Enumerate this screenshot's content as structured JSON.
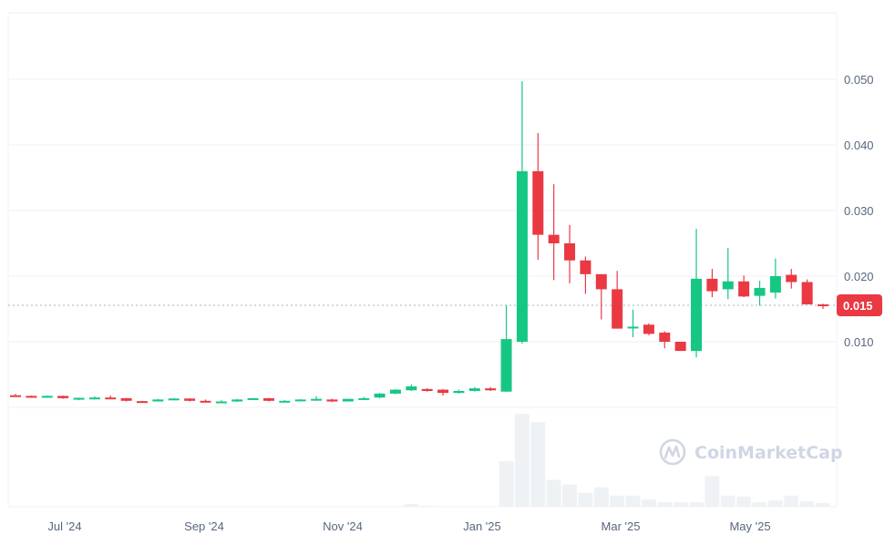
{
  "chart_data": {
    "type": "candlestick",
    "title": "",
    "xlabel": "",
    "ylabel": "",
    "interval": "weekly",
    "ylim": [
      0.0,
      0.06
    ],
    "y_ticks": [
      "0.050",
      "0.040",
      "0.030",
      "0.020",
      "0.010"
    ],
    "y_tick_values": [
      0.05,
      0.04,
      0.03,
      0.02,
      0.01
    ],
    "x_ticks": [
      "Jul '24",
      "Sep '24",
      "Nov '24",
      "Jan '25",
      "Mar '25",
      "May '25"
    ],
    "current_price": 0.015,
    "current_price_label": "0.015",
    "colors": {
      "up": "#16c784",
      "down": "#ea3943",
      "volume": "#eff2f5",
      "grid": "#eff2f5",
      "axis_text": "#58667e",
      "badge": "#ea3943"
    },
    "candles": [
      {
        "o": 0.00185,
        "h": 0.00205,
        "l": 0.0017,
        "c": 0.00175
      },
      {
        "o": 0.00175,
        "h": 0.0018,
        "l": 0.0016,
        "c": 0.0016
      },
      {
        "o": 0.0016,
        "h": 0.0018,
        "l": 0.0015,
        "c": 0.00175
      },
      {
        "o": 0.00175,
        "h": 0.0018,
        "l": 0.0013,
        "c": 0.0014
      },
      {
        "o": 0.0013,
        "h": 0.0015,
        "l": 0.0011,
        "c": 0.00145
      },
      {
        "o": 0.0014,
        "h": 0.0017,
        "l": 0.0012,
        "c": 0.0015
      },
      {
        "o": 0.0015,
        "h": 0.0018,
        "l": 0.0013,
        "c": 0.0014
      },
      {
        "o": 0.0014,
        "h": 0.00145,
        "l": 0.0009,
        "c": 0.001
      },
      {
        "o": 0.00095,
        "h": 0.001,
        "l": 0.0008,
        "c": 0.0009
      },
      {
        "o": 0.0009,
        "h": 0.0013,
        "l": 0.0009,
        "c": 0.0012
      },
      {
        "o": 0.0012,
        "h": 0.0014,
        "l": 0.0011,
        "c": 0.00135
      },
      {
        "o": 0.00135,
        "h": 0.0014,
        "l": 0.0009,
        "c": 0.001
      },
      {
        "o": 0.001,
        "h": 0.0012,
        "l": 0.0008,
        "c": 0.0009
      },
      {
        "o": 0.0008,
        "h": 0.0011,
        "l": 0.0007,
        "c": 0.0009
      },
      {
        "o": 0.0009,
        "h": 0.0013,
        "l": 0.0008,
        "c": 0.0012
      },
      {
        "o": 0.0012,
        "h": 0.0014,
        "l": 0.0011,
        "c": 0.0014
      },
      {
        "o": 0.0014,
        "h": 0.00145,
        "l": 0.0009,
        "c": 0.001
      },
      {
        "o": 0.0009,
        "h": 0.0011,
        "l": 0.0008,
        "c": 0.001
      },
      {
        "o": 0.001,
        "h": 0.00125,
        "l": 0.0009,
        "c": 0.0012
      },
      {
        "o": 0.0011,
        "h": 0.0017,
        "l": 0.001,
        "c": 0.0013
      },
      {
        "o": 0.0012,
        "h": 0.0013,
        "l": 0.0008,
        "c": 0.0009
      },
      {
        "o": 0.0009,
        "h": 0.0013,
        "l": 0.0009,
        "c": 0.0013
      },
      {
        "o": 0.0013,
        "h": 0.0016,
        "l": 0.0012,
        "c": 0.0014
      },
      {
        "o": 0.0015,
        "h": 0.0022,
        "l": 0.0014,
        "c": 0.0021
      },
      {
        "o": 0.0021,
        "h": 0.0028,
        "l": 0.002,
        "c": 0.0027
      },
      {
        "o": 0.0026,
        "h": 0.0035,
        "l": 0.0025,
        "c": 0.0032
      },
      {
        "o": 0.0028,
        "h": 0.0029,
        "l": 0.0024,
        "c": 0.0025
      },
      {
        "o": 0.0027,
        "h": 0.0028,
        "l": 0.0018,
        "c": 0.0022
      },
      {
        "o": 0.0022,
        "h": 0.0027,
        "l": 0.0021,
        "c": 0.0025
      },
      {
        "o": 0.0025,
        "h": 0.0031,
        "l": 0.0024,
        "c": 0.0029
      },
      {
        "o": 0.0029,
        "h": 0.0031,
        "l": 0.0025,
        "c": 0.0026
      },
      {
        "o": 0.0024,
        "h": 0.0156,
        "l": 0.0024,
        "c": 0.0104
      },
      {
        "o": 0.01,
        "h": 0.0497,
        "l": 0.0097,
        "c": 0.036
      },
      {
        "o": 0.036,
        "h": 0.0418,
        "l": 0.0225,
        "c": 0.0263
      },
      {
        "o": 0.0263,
        "h": 0.034,
        "l": 0.0194,
        "c": 0.025
      },
      {
        "o": 0.025,
        "h": 0.0278,
        "l": 0.0189,
        "c": 0.0224
      },
      {
        "o": 0.0224,
        "h": 0.023,
        "l": 0.0173,
        "c": 0.0203
      },
      {
        "o": 0.0203,
        "h": 0.0203,
        "l": 0.0134,
        "c": 0.018
      },
      {
        "o": 0.018,
        "h": 0.0208,
        "l": 0.012,
        "c": 0.012
      },
      {
        "o": 0.0122,
        "h": 0.0149,
        "l": 0.0107,
        "c": 0.0123
      },
      {
        "o": 0.0126,
        "h": 0.0128,
        "l": 0.011,
        "c": 0.0112
      },
      {
        "o": 0.0114,
        "h": 0.0116,
        "l": 0.009,
        "c": 0.01
      },
      {
        "o": 0.01,
        "h": 0.01,
        "l": 0.0086,
        "c": 0.0086
      },
      {
        "o": 0.0086,
        "h": 0.0272,
        "l": 0.0076,
        "c": 0.0196
      },
      {
        "o": 0.0196,
        "h": 0.0211,
        "l": 0.0168,
        "c": 0.0177
      },
      {
        "o": 0.018,
        "h": 0.0243,
        "l": 0.0165,
        "c": 0.0192
      },
      {
        "o": 0.0192,
        "h": 0.0201,
        "l": 0.0168,
        "c": 0.0169
      },
      {
        "o": 0.017,
        "h": 0.0193,
        "l": 0.0155,
        "c": 0.0182
      },
      {
        "o": 0.0175,
        "h": 0.0227,
        "l": 0.0166,
        "c": 0.02
      },
      {
        "o": 0.0202,
        "h": 0.0211,
        "l": 0.0181,
        "c": 0.0191
      },
      {
        "o": 0.0191,
        "h": 0.0195,
        "l": 0.0157,
        "c": 0.0157
      },
      {
        "o": 0.0157,
        "h": 0.0158,
        "l": 0.015,
        "c": 0.0155
      }
    ],
    "volume_relative": [
      0,
      0,
      0,
      0,
      0,
      0,
      0,
      0,
      0,
      0,
      0,
      0,
      0,
      0,
      0,
      0,
      0,
      0,
      0,
      0,
      0,
      0,
      0,
      0,
      0,
      0.03,
      0.01,
      0,
      0,
      0,
      0,
      0.49,
      1.0,
      0.91,
      0.29,
      0.24,
      0.15,
      0.21,
      0.12,
      0.12,
      0.08,
      0.05,
      0.05,
      0.05,
      0.33,
      0.12,
      0.11,
      0.05,
      0.07,
      0.12,
      0.06,
      0.04
    ]
  },
  "watermark": {
    "brand": "CoinMarketCap",
    "icon": "coinmarketcap-logo-icon"
  }
}
